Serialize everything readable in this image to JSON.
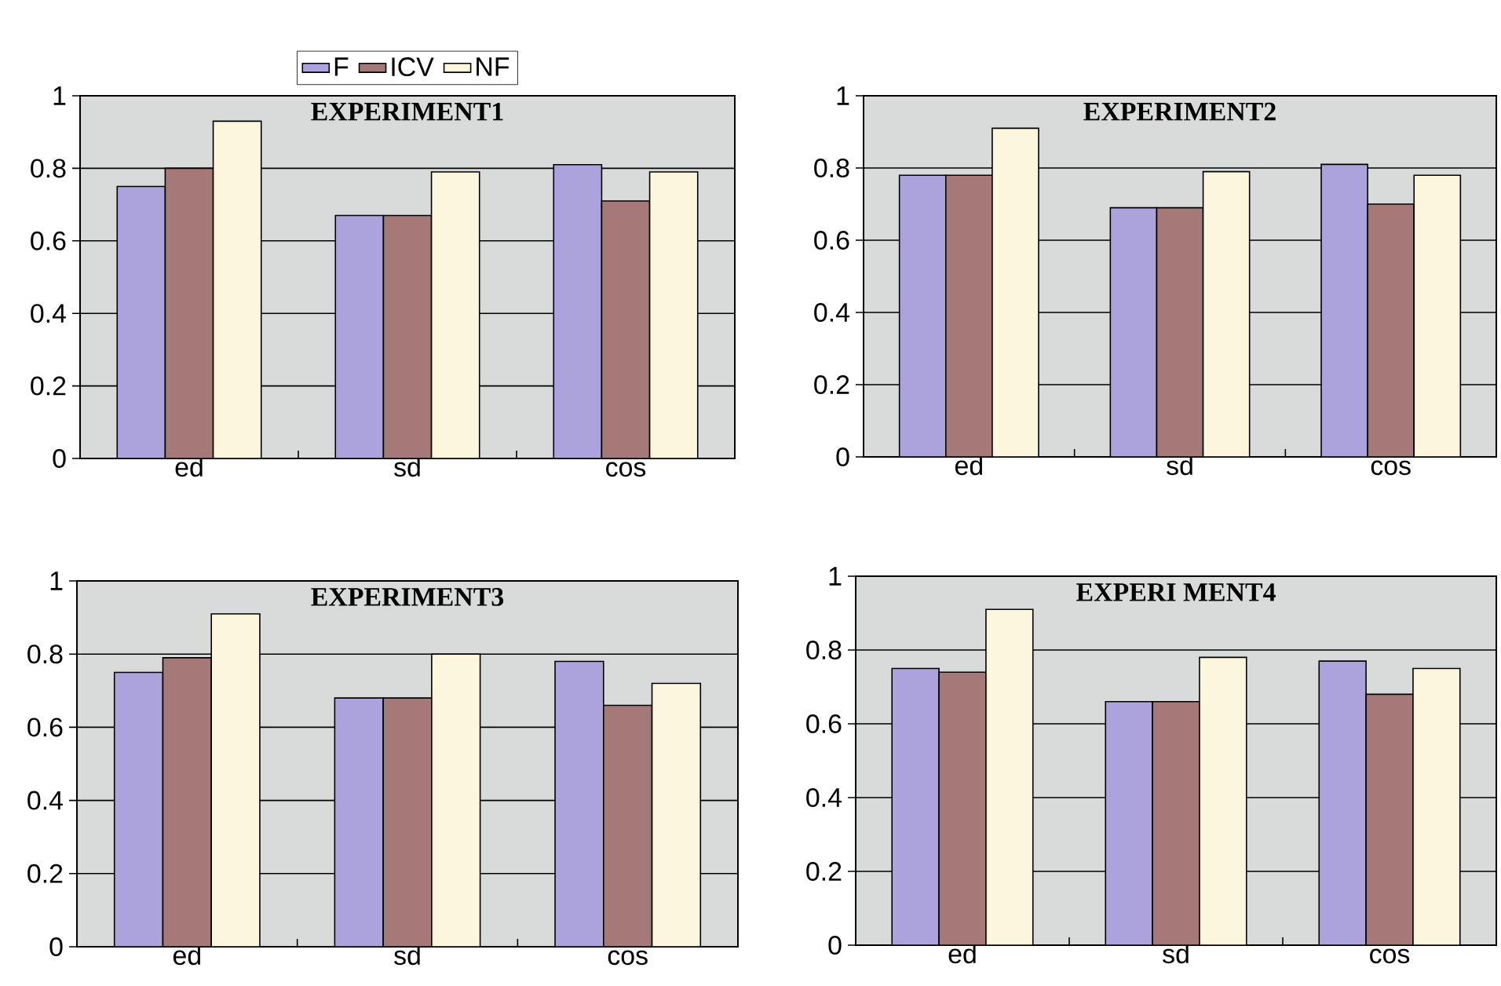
{
  "chart_data": [
    {
      "type": "bar",
      "title": "EXPERIMENT1",
      "categories": [
        "ed",
        "sd",
        "cos"
      ],
      "series": [
        {
          "name": "F",
          "color": "#aca3dc",
          "values": [
            0.75,
            0.67,
            0.81
          ]
        },
        {
          "name": "ICV",
          "color": "#a67979",
          "values": [
            0.8,
            0.67,
            0.71
          ]
        },
        {
          "name": "NF",
          "color": "#fcf7dc",
          "values": [
            0.93,
            0.79,
            0.79
          ]
        }
      ],
      "ylim": [
        0,
        1
      ],
      "yticks": [
        0,
        0.2,
        0.4,
        0.6,
        0.8,
        1
      ],
      "grid": "y",
      "legend": "top"
    },
    {
      "type": "bar",
      "title": "EXPERIMENT2",
      "categories": [
        "ed",
        "sd",
        "cos"
      ],
      "series": [
        {
          "color": "#aca3dc",
          "values": [
            0.78,
            0.69,
            0.81
          ]
        },
        {
          "color": "#a67979",
          "values": [
            0.78,
            0.69,
            0.7
          ]
        },
        {
          "color": "#fcf7dc",
          "values": [
            0.91,
            0.79,
            0.78
          ]
        }
      ],
      "ylim": [
        0,
        1
      ],
      "yticks": [
        0,
        0.2,
        0.4,
        0.6,
        0.8,
        1
      ],
      "grid": "y"
    },
    {
      "type": "bar",
      "title": "EXPERIMENT3",
      "categories": [
        "ed",
        "sd",
        "cos"
      ],
      "series": [
        {
          "color": "#aca3dc",
          "values": [
            0.75,
            0.68,
            0.78
          ]
        },
        {
          "color": "#a67979",
          "values": [
            0.79,
            0.68,
            0.66
          ]
        },
        {
          "color": "#fcf7dc",
          "values": [
            0.91,
            0.8,
            0.72
          ]
        }
      ],
      "ylim": [
        0,
        1
      ],
      "yticks": [
        0,
        0.2,
        0.4,
        0.6,
        0.8,
        1
      ],
      "grid": "y"
    },
    {
      "type": "bar",
      "title": "EXPERI MENT4",
      "categories": [
        "ed",
        "sd",
        "cos"
      ],
      "series": [
        {
          "color": "#aca3dc",
          "values": [
            0.75,
            0.66,
            0.77
          ]
        },
        {
          "color": "#a67979",
          "values": [
            0.74,
            0.66,
            0.68
          ]
        },
        {
          "color": "#fcf7dc",
          "values": [
            0.91,
            0.78,
            0.75
          ]
        }
      ],
      "ylim": [
        0,
        1
      ],
      "yticks": [
        0,
        0.2,
        0.4,
        0.6,
        0.8,
        1
      ],
      "grid": "y"
    }
  ]
}
